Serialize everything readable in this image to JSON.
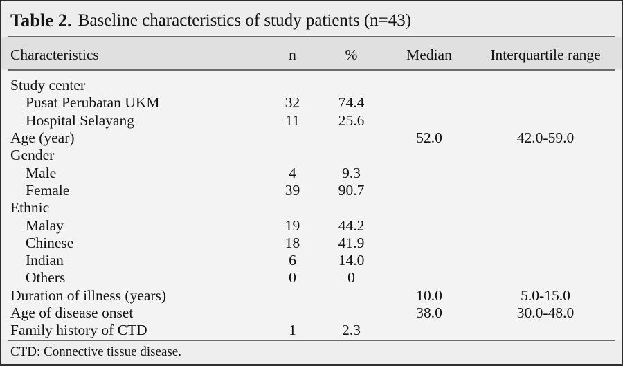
{
  "table": {
    "title_bold": "Table 2.",
    "title_rest": "Baseline characteristics of study patients (n=43)",
    "columns": {
      "characteristics": "Characteristics",
      "n": "n",
      "pct": "%",
      "median": "Median",
      "iqr": "Interquartile range"
    },
    "rows": [
      {
        "label": "Study center",
        "indent": 0
      },
      {
        "label": "Pusat Perubatan UKM",
        "indent": 1,
        "n": "32",
        "pct": "74.4"
      },
      {
        "label": "Hospital Selayang",
        "indent": 1,
        "n": "11",
        "pct": "25.6"
      },
      {
        "label": "Age (year)",
        "indent": 0,
        "median": "52.0",
        "iqr": "42.0-59.0"
      },
      {
        "label": "Gender",
        "indent": 0
      },
      {
        "label": "Male",
        "indent": 1,
        "n": "4",
        "pct": "9.3"
      },
      {
        "label": "Female",
        "indent": 1,
        "n": "39",
        "pct": "90.7"
      },
      {
        "label": "Ethnic",
        "indent": 0
      },
      {
        "label": "Malay",
        "indent": 1,
        "n": "19",
        "pct": "44.2"
      },
      {
        "label": "Chinese",
        "indent": 1,
        "n": "18",
        "pct": "41.9"
      },
      {
        "label": "Indian",
        "indent": 1,
        "n": "6",
        "pct": "14.0"
      },
      {
        "label": "Others",
        "indent": 1,
        "n": "0",
        "pct": "0"
      },
      {
        "label": "Duration of illness (years)",
        "indent": 0,
        "median": "10.0",
        "iqr": "5.0-15.0"
      },
      {
        "label": "Age of disease onset",
        "indent": 0,
        "median": "38.0",
        "iqr": "30.0-48.0"
      },
      {
        "label": "Family history of CTD",
        "indent": 0,
        "n": "1",
        "pct": "2.3"
      }
    ],
    "footnote": "CTD: Connective tissue disease."
  },
  "colors": {
    "frame_border": "#2e2e2e",
    "band_background": "#ededed",
    "header_background": "#e0e0e0",
    "body_background": "#f3f3f3",
    "rule": "#6b6b6b",
    "text": "#141414"
  }
}
